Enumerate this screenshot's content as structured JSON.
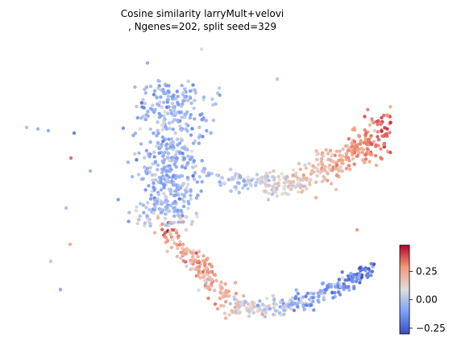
{
  "chart_data": {
    "type": "scatter",
    "title_line1": "Cosine similarity larryMult+velovi",
    "title_line2": ", Ngenes=202, split seed=329",
    "x_axis_visible": false,
    "y_axis_visible": false,
    "colormap": "coolwarm",
    "colorbar": {
      "vmin": -0.3,
      "vmax": 0.48,
      "ticks": [
        0.25,
        0.0,
        -0.25
      ],
      "tick_labels": [
        "0.25",
        "0.00",
        "−0.25"
      ],
      "placement": "bottom-right"
    },
    "point_clusters": [
      {
        "name": "upper-left blob",
        "cx": 0.0,
        "cy": 1.8,
        "rx": 0.9,
        "ry": 0.85,
        "n": 520,
        "value_mean": -0.05,
        "value_sd": 0.07
      },
      {
        "name": "right arm",
        "cx": 4.0,
        "cy": 1.6,
        "rx": 2.6,
        "ry": 0.45,
        "n": 380,
        "value_mean": 0.22,
        "value_sd": 0.09
      },
      {
        "name": "lower arc",
        "cx": 3.2,
        "cy": -1.3,
        "rx": 2.6,
        "ry": 0.55,
        "n": 430,
        "value_mean": 0.08,
        "value_sd": 0.1
      },
      {
        "name": "outliers",
        "cx": 0.0,
        "cy": 0.0,
        "rx": 0.0,
        "ry": 0.0,
        "n": 14,
        "value_mean": 0.0,
        "value_sd": 0.1
      }
    ],
    "xlim": [
      -3.2,
      7.6
    ],
    "ylim": [
      -2.3,
      3.6
    ]
  }
}
